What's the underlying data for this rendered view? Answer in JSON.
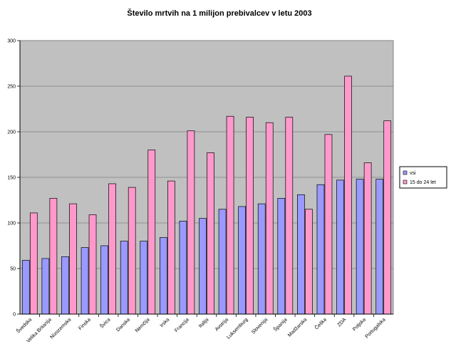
{
  "chart_data": {
    "type": "bar",
    "title": "Število mrtvih na 1 milijon prebivalcev v letu 2003",
    "xlabel": "",
    "ylabel": "",
    "ylim": [
      0,
      300
    ],
    "yticks": [
      "0",
      "50",
      "100",
      "150",
      "200",
      "250",
      "300"
    ],
    "grid": true,
    "legend_position": "right",
    "categories": [
      "Švedska",
      "Velika Britanija",
      "Nizozemska",
      "Finska",
      "Švica",
      "Danska",
      "Nemčija",
      "Irska",
      "Francija",
      "Italija",
      "Avstrija",
      "Luksemburg",
      "Slovenija",
      "Španija",
      "Madžarska",
      "Češka",
      "ZDA",
      "Poljska",
      "Portugalska"
    ],
    "series": [
      {
        "name": "vsi",
        "color": "#9999ff",
        "values": [
          59,
          61,
          63,
          73,
          75,
          80,
          80,
          84,
          102,
          105,
          115,
          118,
          121,
          127,
          131,
          142,
          147,
          148,
          148
        ]
      },
      {
        "name": "15 do 24 let",
        "color": "#ff99cc",
        "values": [
          111,
          127,
          121,
          109,
          143,
          139,
          180,
          146,
          201,
          177,
          217,
          216,
          210,
          216,
          115,
          197,
          261,
          166,
          212
        ]
      }
    ],
    "colors": {
      "plot_background": "#c0c0c0",
      "gridline": "#808080",
      "bar_outline": "#000000"
    }
  }
}
